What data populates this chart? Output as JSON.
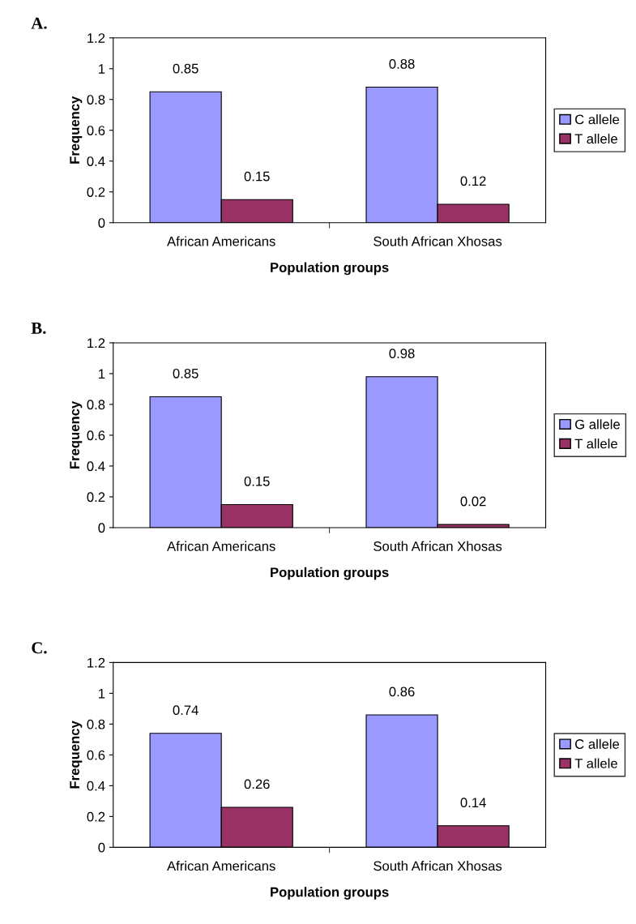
{
  "chart_data": [
    {
      "type": "bar",
      "title": "A.",
      "xlabel": "Population groups",
      "ylabel": "Frequency",
      "categories": [
        "African Americans",
        "South African Xhosas"
      ],
      "series": [
        {
          "name": "C allele",
          "color": "#9999ff",
          "values": [
            0.85,
            0.88
          ]
        },
        {
          "name": "T allele",
          "color": "#993366",
          "values": [
            0.15,
            0.12
          ]
        }
      ],
      "ylim": [
        0,
        1.2
      ],
      "yticks": [
        0,
        0.2,
        0.4,
        0.6,
        0.8,
        1,
        1.2
      ],
      "data_labels": true,
      "legend": "right",
      "grid": false
    },
    {
      "type": "bar",
      "title": "B.",
      "xlabel": "Population groups",
      "ylabel": "Frequency",
      "categories": [
        "African Americans",
        "South African Xhosas"
      ],
      "series": [
        {
          "name": "G allele",
          "color": "#9999ff",
          "values": [
            0.85,
            0.98
          ]
        },
        {
          "name": "T allele",
          "color": "#993366",
          "values": [
            0.15,
            0.02
          ]
        }
      ],
      "ylim": [
        0,
        1.2
      ],
      "yticks": [
        0,
        0.2,
        0.4,
        0.6,
        0.8,
        1,
        1.2
      ],
      "data_labels": true,
      "legend": "right",
      "grid": false
    },
    {
      "type": "bar",
      "title": "C.",
      "xlabel": "Population groups",
      "ylabel": "Frequency",
      "categories": [
        "African Americans",
        "South African Xhosas"
      ],
      "series": [
        {
          "name": "C allele",
          "color": "#9999ff",
          "values": [
            0.74,
            0.86
          ]
        },
        {
          "name": "T allele",
          "color": "#993366",
          "values": [
            0.26,
            0.14
          ]
        }
      ],
      "ylim": [
        0,
        1.2
      ],
      "yticks": [
        0,
        0.2,
        0.4,
        0.6,
        0.8,
        1,
        1.2
      ],
      "data_labels": true,
      "legend": "right",
      "grid": false
    }
  ]
}
